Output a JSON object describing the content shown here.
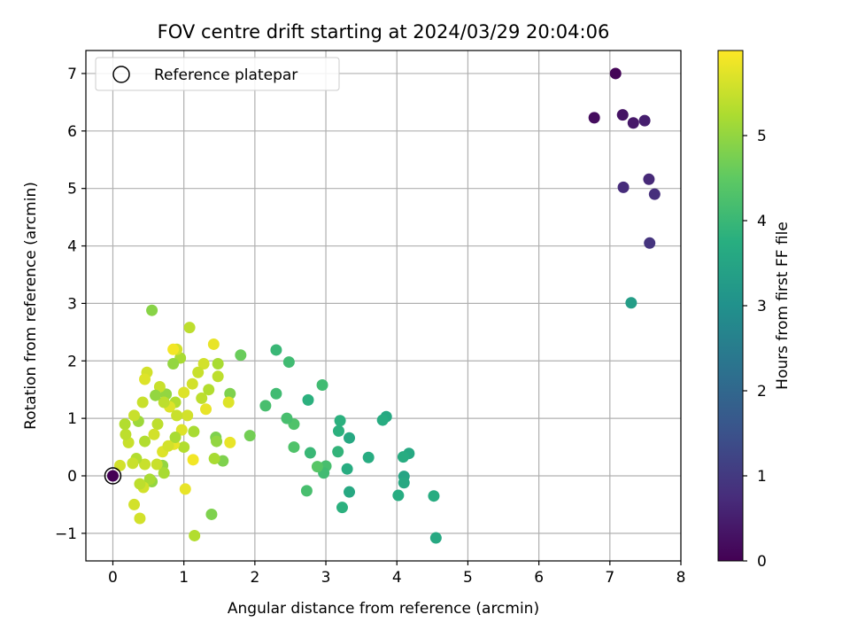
{
  "chart_data": {
    "type": "scatter",
    "title": "FOV centre drift starting at 2024/03/29 20:04:06",
    "xlabel": "Angular distance from reference (arcmin)",
    "ylabel": "Rotation from reference (arcmin)",
    "xlim": [
      -0.38,
      8.0
    ],
    "ylim": [
      -1.48,
      7.4
    ],
    "xticks": [
      "0",
      "1",
      "2",
      "3",
      "4",
      "5",
      "6",
      "7",
      "8"
    ],
    "yticks": [
      "−1",
      "0",
      "1",
      "2",
      "3",
      "4",
      "5",
      "6",
      "7"
    ],
    "grid": true,
    "legend": {
      "location": "upper-left",
      "entries": [
        "Reference platepar"
      ]
    },
    "reference_point": {
      "x": 0,
      "y": 0,
      "label": "Reference platepar"
    },
    "colorbar": {
      "label": "Hours from first FF file",
      "colormap": "viridis",
      "range": [
        0,
        6.0
      ],
      "ticks": [
        "0",
        "1",
        "2",
        "3",
        "4",
        "5"
      ]
    },
    "points": [
      {
        "x": 7.08,
        "y": 7.0,
        "h": 0.05
      },
      {
        "x": 6.78,
        "y": 6.23,
        "h": 0.2
      },
      {
        "x": 7.18,
        "y": 6.28,
        "h": 0.3
      },
      {
        "x": 7.33,
        "y": 6.14,
        "h": 0.4
      },
      {
        "x": 7.49,
        "y": 6.18,
        "h": 0.5
      },
      {
        "x": 7.55,
        "y": 5.16,
        "h": 0.7
      },
      {
        "x": 7.19,
        "y": 5.02,
        "h": 0.75
      },
      {
        "x": 7.63,
        "y": 4.9,
        "h": 0.8
      },
      {
        "x": 7.56,
        "y": 4.05,
        "h": 0.9
      },
      {
        "x": 7.3,
        "y": 3.01,
        "h": 3.3
      },
      {
        "x": 4.55,
        "y": -1.08,
        "h": 3.6
      },
      {
        "x": 4.52,
        "y": -0.35,
        "h": 3.7
      },
      {
        "x": 4.17,
        "y": 0.39,
        "h": 3.6
      },
      {
        "x": 4.09,
        "y": 0.33,
        "h": 3.7
      },
      {
        "x": 4.1,
        "y": -0.01,
        "h": 3.5
      },
      {
        "x": 4.1,
        "y": -0.12,
        "h": 3.6
      },
      {
        "x": 4.02,
        "y": -0.34,
        "h": 3.7
      },
      {
        "x": 3.85,
        "y": 1.03,
        "h": 3.6
      },
      {
        "x": 3.8,
        "y": 0.97,
        "h": 3.7
      },
      {
        "x": 3.6,
        "y": 0.32,
        "h": 3.7
      },
      {
        "x": 3.33,
        "y": 0.66,
        "h": 3.6
      },
      {
        "x": 3.33,
        "y": -0.28,
        "h": 3.6
      },
      {
        "x": 3.3,
        "y": 0.12,
        "h": 3.7
      },
      {
        "x": 3.2,
        "y": 0.96,
        "h": 3.8
      },
      {
        "x": 3.18,
        "y": 0.78,
        "h": 3.8
      },
      {
        "x": 3.17,
        "y": 0.42,
        "h": 3.9
      },
      {
        "x": 3.23,
        "y": -0.55,
        "h": 3.8
      },
      {
        "x": 2.95,
        "y": 1.58,
        "h": 4.1
      },
      {
        "x": 3.0,
        "y": 0.17,
        "h": 4.2
      },
      {
        "x": 2.97,
        "y": 0.05,
        "h": 4.1
      },
      {
        "x": 2.88,
        "y": 0.16,
        "h": 4.4
      },
      {
        "x": 2.78,
        "y": 0.4,
        "h": 4.0
      },
      {
        "x": 2.75,
        "y": 1.32,
        "h": 3.8
      },
      {
        "x": 2.73,
        "y": -0.26,
        "h": 4.2
      },
      {
        "x": 2.55,
        "y": 0.5,
        "h": 4.3
      },
      {
        "x": 2.55,
        "y": 0.9,
        "h": 4.3
      },
      {
        "x": 2.45,
        "y": 1.0,
        "h": 4.2
      },
      {
        "x": 2.48,
        "y": 1.98,
        "h": 4.1
      },
      {
        "x": 2.3,
        "y": 2.19,
        "h": 4.0
      },
      {
        "x": 2.3,
        "y": 1.43,
        "h": 4.1
      },
      {
        "x": 2.15,
        "y": 1.22,
        "h": 4.2
      },
      {
        "x": 1.93,
        "y": 0.7,
        "h": 4.7
      },
      {
        "x": 1.8,
        "y": 2.1,
        "h": 4.6
      },
      {
        "x": 1.65,
        "y": 1.43,
        "h": 4.8
      },
      {
        "x": 1.55,
        "y": 0.26,
        "h": 4.8
      },
      {
        "x": 1.45,
        "y": 0.67,
        "h": 4.8
      },
      {
        "x": 1.46,
        "y": 0.6,
        "h": 5.0
      },
      {
        "x": 1.48,
        "y": 1.73,
        "h": 5.4
      },
      {
        "x": 1.48,
        "y": 1.95,
        "h": 5.2
      },
      {
        "x": 1.43,
        "y": 0.3,
        "h": 5.2
      },
      {
        "x": 1.39,
        "y": -0.67,
        "h": 4.8
      },
      {
        "x": 1.42,
        "y": 2.29,
        "h": 5.8
      },
      {
        "x": 1.63,
        "y": 1.28,
        "h": 5.7
      },
      {
        "x": 1.65,
        "y": 0.58,
        "h": 5.8
      },
      {
        "x": 1.31,
        "y": 1.16,
        "h": 5.8
      },
      {
        "x": 1.28,
        "y": 1.95,
        "h": 5.6
      },
      {
        "x": 1.14,
        "y": 0.77,
        "h": 5.2
      },
      {
        "x": 1.15,
        "y": -1.04,
        "h": 5.3
      },
      {
        "x": 1.13,
        "y": 0.28,
        "h": 5.9
      },
      {
        "x": 1.08,
        "y": 2.58,
        "h": 5.4
      },
      {
        "x": 1.02,
        "y": -0.23,
        "h": 5.8
      },
      {
        "x": 1.05,
        "y": 1.05,
        "h": 5.6
      },
      {
        "x": 1.0,
        "y": 0.5,
        "h": 5.3
      },
      {
        "x": 0.97,
        "y": 0.8,
        "h": 5.7
      },
      {
        "x": 0.95,
        "y": 2.05,
        "h": 5.2
      },
      {
        "x": 0.9,
        "y": 2.2,
        "h": 5.6
      },
      {
        "x": 0.85,
        "y": 1.95,
        "h": 5.0
      },
      {
        "x": 0.85,
        "y": 2.2,
        "h": 5.9
      },
      {
        "x": 0.86,
        "y": 0.55,
        "h": 5.8
      },
      {
        "x": 0.88,
        "y": 0.67,
        "h": 5.2
      },
      {
        "x": 0.88,
        "y": 1.28,
        "h": 5.3
      },
      {
        "x": 0.8,
        "y": 1.2,
        "h": 5.7
      },
      {
        "x": 0.75,
        "y": 1.42,
        "h": 5.0
      },
      {
        "x": 0.72,
        "y": 1.28,
        "h": 5.4
      },
      {
        "x": 0.7,
        "y": 0.18,
        "h": 5.0
      },
      {
        "x": 0.72,
        "y": 0.05,
        "h": 5.2
      },
      {
        "x": 0.66,
        "y": 1.55,
        "h": 5.5
      },
      {
        "x": 0.63,
        "y": 0.9,
        "h": 5.4
      },
      {
        "x": 0.6,
        "y": 1.4,
        "h": 5.0
      },
      {
        "x": 0.58,
        "y": 0.72,
        "h": 5.6
      },
      {
        "x": 0.55,
        "y": 2.88,
        "h": 4.9
      },
      {
        "x": 0.55,
        "y": -0.1,
        "h": 5.0
      },
      {
        "x": 0.52,
        "y": -0.06,
        "h": 5.2
      },
      {
        "x": 0.48,
        "y": 1.8,
        "h": 5.6
      },
      {
        "x": 0.45,
        "y": 1.68,
        "h": 5.7
      },
      {
        "x": 0.42,
        "y": 1.28,
        "h": 5.5
      },
      {
        "x": 0.45,
        "y": 0.6,
        "h": 5.3
      },
      {
        "x": 0.45,
        "y": 0.2,
        "h": 5.5
      },
      {
        "x": 0.43,
        "y": -0.2,
        "h": 5.6
      },
      {
        "x": 0.38,
        "y": -0.14,
        "h": 5.4
      },
      {
        "x": 0.38,
        "y": -0.74,
        "h": 5.6
      },
      {
        "x": 0.36,
        "y": 0.95,
        "h": 5.1
      },
      {
        "x": 0.33,
        "y": 0.3,
        "h": 5.3
      },
      {
        "x": 0.3,
        "y": 1.05,
        "h": 5.5
      },
      {
        "x": 0.3,
        "y": -0.5,
        "h": 5.6
      },
      {
        "x": 0.28,
        "y": 0.22,
        "h": 5.5
      },
      {
        "x": 0.22,
        "y": 0.58,
        "h": 5.5
      },
      {
        "x": 0.18,
        "y": 0.72,
        "h": 5.4
      },
      {
        "x": 0.17,
        "y": 0.9,
        "h": 5.3
      },
      {
        "x": 0.1,
        "y": 0.18,
        "h": 5.6
      },
      {
        "x": 0.62,
        "y": 0.2,
        "h": 5.5
      },
      {
        "x": 0.7,
        "y": 0.42,
        "h": 5.7
      },
      {
        "x": 0.78,
        "y": 0.52,
        "h": 5.6
      },
      {
        "x": 1.0,
        "y": 1.45,
        "h": 5.7
      },
      {
        "x": 1.12,
        "y": 1.6,
        "h": 5.6
      },
      {
        "x": 1.2,
        "y": 1.8,
        "h": 5.5
      },
      {
        "x": 1.25,
        "y": 1.35,
        "h": 5.4
      },
      {
        "x": 1.35,
        "y": 1.5,
        "h": 5.3
      },
      {
        "x": 0.9,
        "y": 1.05,
        "h": 5.5
      }
    ]
  }
}
